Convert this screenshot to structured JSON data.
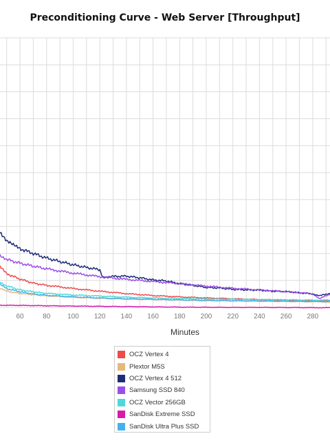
{
  "chart_data": {
    "type": "line",
    "title": "Preconditioning Curve - Web Server [Throughput]",
    "xlabel": "Minutes",
    "ylabel": "",
    "xticks": [
      60,
      80,
      100,
      120,
      140,
      160,
      180,
      200,
      220,
      240,
      260,
      280
    ],
    "xlim": [
      45,
      293
    ],
    "ylim": [
      0,
      100
    ],
    "grid": true,
    "legend_position": "bottom",
    "series": [
      {
        "name": "OCZ Vertex 4",
        "color": "#ee4b4b",
        "x": [
          45,
          50,
          60,
          70,
          80,
          100,
          120,
          140,
          160,
          180,
          200,
          220,
          240,
          260,
          280,
          293
        ],
        "y": [
          15.0,
          12.5,
          10.5,
          9.0,
          8.2,
          7.0,
          6.0,
          5.1,
          4.4,
          3.9,
          3.5,
          3.2,
          2.9,
          2.7,
          2.5,
          2.4
        ]
      },
      {
        "name": "Plextor M5S",
        "color": "#e7b87e",
        "x": [
          45,
          50,
          60,
          70,
          80,
          100,
          120,
          140,
          160,
          180,
          200,
          220,
          240,
          260,
          280,
          293
        ],
        "y": [
          7.0,
          6.0,
          5.2,
          4.7,
          4.3,
          3.8,
          3.4,
          3.1,
          2.9,
          2.7,
          2.5,
          2.4,
          2.3,
          2.2,
          2.1,
          2.0
        ]
      },
      {
        "name": "OCZ Vertex 4 512",
        "color": "#1e2b7a",
        "x": [
          45,
          50,
          55,
          60,
          70,
          80,
          90,
          100,
          110,
          120,
          122,
          130,
          140,
          150,
          160,
          170,
          180,
          190,
          200,
          210,
          220,
          230,
          240,
          250,
          260,
          270,
          280,
          285,
          293
        ],
        "y": [
          28.0,
          24.5,
          23.0,
          21.8,
          20.0,
          18.3,
          17.0,
          15.8,
          14.8,
          14.0,
          11.2,
          11.5,
          11.6,
          11.0,
          10.2,
          9.8,
          8.8,
          8.2,
          7.4,
          7.2,
          6.7,
          6.5,
          6.4,
          6.0,
          5.9,
          5.4,
          5.0,
          4.3,
          5.2
        ]
      },
      {
        "name": "Samsung SSD 840",
        "color": "#9a4ee8",
        "x": [
          45,
          50,
          60,
          70,
          80,
          100,
          120,
          140,
          160,
          180,
          200,
          220,
          240,
          260,
          280,
          285,
          293
        ],
        "y": [
          19.5,
          17.8,
          16.4,
          15.3,
          14.3,
          12.7,
          11.4,
          10.4,
          9.6,
          8.8,
          7.9,
          7.1,
          6.5,
          5.8,
          5.1,
          3.3,
          4.8
        ]
      },
      {
        "name": "OCZ Vector 256GB",
        "color": "#4fd8dc",
        "x": [
          45,
          50,
          60,
          70,
          80,
          100,
          120,
          140,
          160,
          180,
          200,
          220,
          240,
          260,
          280,
          293
        ],
        "y": [
          9.5,
          8.0,
          6.5,
          5.8,
          5.2,
          4.6,
          4.2,
          3.8,
          3.5,
          3.3,
          3.1,
          3.0,
          2.9,
          2.8,
          2.7,
          2.7
        ]
      },
      {
        "name": "SanDisk Extreme SSD",
        "color": "#d719b0",
        "x": [
          45,
          60,
          80,
          100,
          120,
          140,
          160,
          180,
          200,
          220,
          240,
          260,
          280,
          293
        ],
        "y": [
          0.8,
          0.75,
          0.6,
          0.5,
          0.4,
          0.3,
          0.2,
          0.1,
          0.05,
          0.0,
          0.0,
          -0.05,
          -0.1,
          -0.1
        ]
      },
      {
        "name": "SanDisk Ultra Plus SSD",
        "color": "#46b2ea",
        "x": [
          45,
          50,
          60,
          70,
          80,
          100,
          120,
          140,
          160,
          180,
          200,
          220,
          240,
          260,
          280,
          293
        ],
        "y": [
          8.5,
          7.0,
          5.8,
          5.0,
          4.5,
          3.9,
          3.5,
          3.2,
          3.0,
          2.8,
          2.6,
          2.5,
          2.4,
          2.3,
          2.2,
          2.2
        ]
      }
    ]
  }
}
